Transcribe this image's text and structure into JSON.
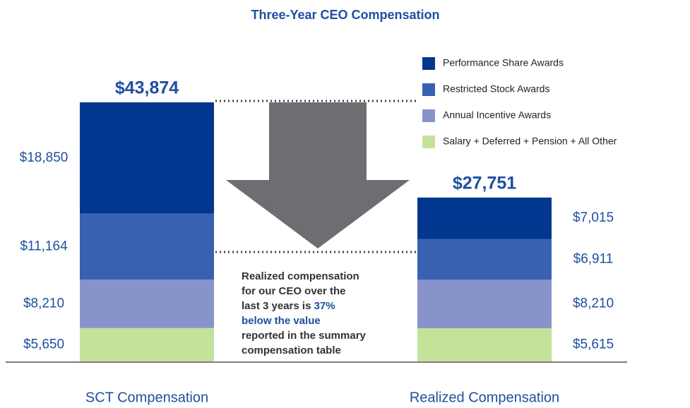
{
  "chart_data": {
    "type": "stacked_bar",
    "title": "Three-Year CEO Compensation",
    "categories": [
      "SCT Compensation",
      "Realized Compensation"
    ],
    "series": [
      {
        "name": "Salary + Deferred + Pension + All Other",
        "color": "#c5e29b",
        "values": [
          5650,
          5615
        ],
        "value_labels": [
          "$5,650",
          "$5,615"
        ]
      },
      {
        "name": "Annual Incentive Awards",
        "color": "#8793cb",
        "values": [
          8210,
          8210
        ],
        "value_labels": [
          "$8,210",
          "$8,210"
        ]
      },
      {
        "name": "Restricted Stock Awards",
        "color": "#3a60b2",
        "values": [
          11164,
          6911
        ],
        "value_labels": [
          "$11,164",
          "$6,911"
        ]
      },
      {
        "name": "Performance Share Awards",
        "color": "#03378f",
        "values": [
          18850,
          7015
        ],
        "value_labels": [
          "$18,850",
          "$7,015"
        ]
      }
    ],
    "totals": [
      43874,
      27751
    ],
    "total_labels": [
      "$43,874",
      "$27,751"
    ],
    "annotation": [
      [
        {
          "text": "Realized compensation",
          "bold": false
        }
      ],
      [
        {
          "text": "for our CEO over the",
          "bold": false
        }
      ],
      [
        {
          "text": "last 3 years is ",
          "bold": false
        },
        {
          "text": "37%",
          "bold": true
        }
      ],
      [
        {
          "text": "below the value",
          "bold": true
        }
      ],
      [
        {
          "text": "reported in the summary",
          "bold": false
        }
      ],
      [
        {
          "text": "compensation table",
          "bold": false
        }
      ]
    ]
  }
}
